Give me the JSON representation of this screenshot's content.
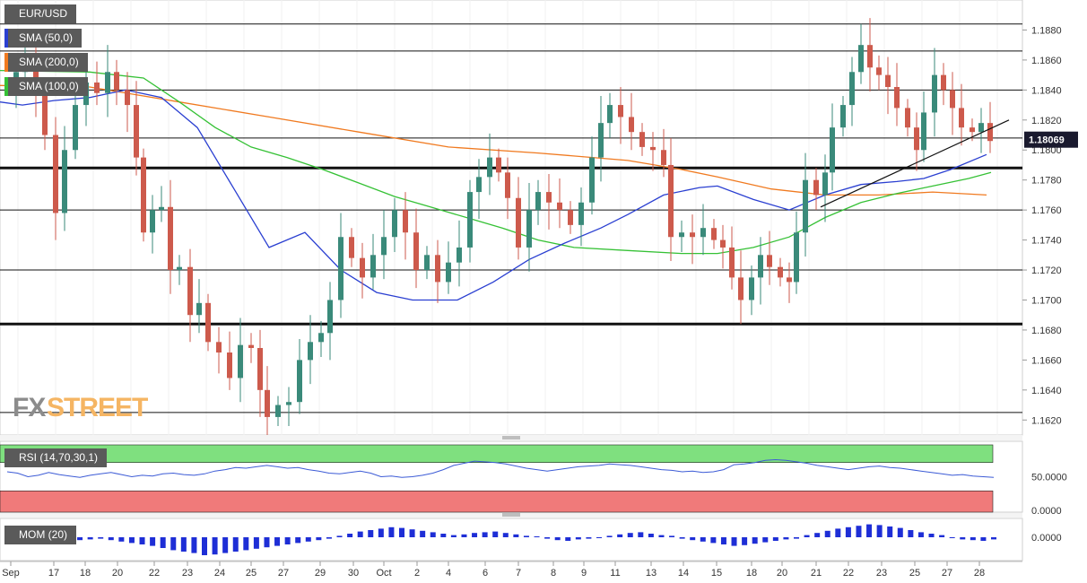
{
  "colors": {
    "up": "#3a8a7a",
    "down": "#cd5a4c",
    "sma50": "#2a3fd1",
    "sma200": "#f07a20",
    "sma100": "#35c135",
    "rsi_line": "#3c5bd6",
    "rsi_overbought": "#7fe07f",
    "rsi_oversold": "#f07a7a",
    "mom_bar": "#1e2ed6",
    "tag_bg": "#1a1a2e",
    "logo_fx": "#8c8c8c",
    "logo_street": "#f5b563"
  },
  "chart_data": [
    {
      "type": "candlestick",
      "symbol": "EUR/USD",
      "ylim": [
        1.161,
        1.19
      ],
      "y_ticks": [
        "1.1620",
        "1.1640",
        "1.1660",
        "1.1680",
        "1.1700",
        "1.1720",
        "1.1740",
        "1.1760",
        "1.1780",
        "1.1800",
        "1.1820",
        "1.1840",
        "1.1860",
        "1.1880"
      ],
      "last_price": "1.18069",
      "x_ticks": [
        "Sep",
        "17",
        "18",
        "20",
        "22",
        "23",
        "24",
        "25",
        "27",
        "29",
        "30",
        "Oct",
        "2",
        "4",
        "6",
        "7",
        "8",
        "9",
        "11",
        "13",
        "14",
        "15",
        "18",
        "20",
        "21",
        "22",
        "23",
        "25",
        "27",
        "28"
      ],
      "indicators": [
        {
          "name": "SMA (50,0)",
          "color": "#2a3fd1"
        },
        {
          "name": "SMA (200,0)",
          "color": "#f07a20"
        },
        {
          "name": "SMA (100,0)",
          "color": "#35c135"
        }
      ],
      "sma50_path": [
        [
          0,
          1.1832
        ],
        [
          25,
          1.183
        ],
        [
          60,
          1.1833
        ],
        [
          100,
          1.1835
        ],
        [
          140,
          1.184
        ],
        [
          180,
          1.1835
        ],
        [
          220,
          1.1815
        ],
        [
          260,
          1.1775
        ],
        [
          300,
          1.1735
        ],
        [
          340,
          1.1745
        ],
        [
          380,
          1.172
        ],
        [
          420,
          1.1705
        ],
        [
          460,
          1.17
        ],
        [
          510,
          1.17
        ],
        [
          550,
          1.1712
        ],
        [
          590,
          1.1727
        ],
        [
          630,
          1.1738
        ],
        [
          670,
          1.1748
        ],
        [
          700,
          1.1757
        ],
        [
          740,
          1.177
        ],
        [
          780,
          1.1775
        ],
        [
          800,
          1.1776
        ],
        [
          840,
          1.1767
        ],
        [
          880,
          1.176
        ],
        [
          920,
          1.177
        ],
        [
          960,
          1.1777
        ],
        [
          1000,
          1.1779
        ],
        [
          1030,
          1.1781
        ],
        [
          1060,
          1.1787
        ],
        [
          1100,
          1.1797
        ]
      ],
      "sma200_path": [
        [
          0,
          1.1843
        ],
        [
          100,
          1.1842
        ],
        [
          200,
          1.1832
        ],
        [
          300,
          1.1822
        ],
        [
          400,
          1.1812
        ],
        [
          500,
          1.1802
        ],
        [
          600,
          1.1798
        ],
        [
          700,
          1.1793
        ],
        [
          760,
          1.1787
        ],
        [
          800,
          1.1782
        ],
        [
          860,
          1.1774
        ],
        [
          920,
          1.177
        ],
        [
          980,
          1.177
        ],
        [
          1040,
          1.1772
        ],
        [
          1100,
          1.177
        ]
      ],
      "sma100_path": [
        [
          0,
          1.1853
        ],
        [
          100,
          1.1852
        ],
        [
          160,
          1.1848
        ],
        [
          200,
          1.1832
        ],
        [
          240,
          1.1815
        ],
        [
          280,
          1.1802
        ],
        [
          320,
          1.1795
        ],
        [
          360,
          1.1787
        ],
        [
          400,
          1.1778
        ],
        [
          440,
          1.1769
        ],
        [
          480,
          1.1762
        ],
        [
          520,
          1.1755
        ],
        [
          560,
          1.1748
        ],
        [
          600,
          1.174
        ],
        [
          640,
          1.1735
        ],
        [
          700,
          1.1733
        ],
        [
          760,
          1.1731
        ],
        [
          800,
          1.1731
        ],
        [
          840,
          1.1735
        ],
        [
          880,
          1.1742
        ],
        [
          920,
          1.1755
        ],
        [
          960,
          1.1765
        ],
        [
          1000,
          1.1771
        ],
        [
          1040,
          1.1776
        ],
        [
          1080,
          1.1781
        ],
        [
          1105,
          1.1785
        ]
      ],
      "horizontal_levels": [
        {
          "price": 1.1884,
          "bold": false
        },
        {
          "price": 1.1866,
          "bold": false
        },
        {
          "price": 1.184,
          "bold": false
        },
        {
          "price": 1.1808,
          "bold": false
        },
        {
          "price": 1.1788,
          "bold": true
        },
        {
          "price": 1.176,
          "bold": false
        },
        {
          "price": 1.172,
          "bold": false
        },
        {
          "price": 1.1684,
          "bold": true
        },
        {
          "price": 1.1625,
          "bold": false
        }
      ],
      "trendline": [
        [
          915,
          1.1762
        ],
        [
          1125,
          1.182
        ]
      ],
      "candles_close_path": [
        [
          8,
          1.1842
        ],
        [
          18,
          1.1852
        ],
        [
          28,
          1.1856
        ],
        [
          40,
          1.1838
        ],
        [
          50,
          1.181
        ],
        [
          62,
          1.1758
        ],
        [
          72,
          1.18
        ],
        [
          84,
          1.183
        ],
        [
          96,
          1.1845
        ],
        [
          108,
          1.1838
        ],
        [
          120,
          1.1852
        ],
        [
          130,
          1.184
        ],
        [
          142,
          1.183
        ],
        [
          152,
          1.1795
        ],
        [
          160,
          1.1745
        ],
        [
          170,
          1.176
        ],
        [
          180,
          1.1762
        ],
        [
          190,
          1.172
        ],
        [
          200,
          1.1722
        ],
        [
          212,
          1.169
        ],
        [
          222,
          1.1698
        ],
        [
          232,
          1.1672
        ],
        [
          244,
          1.1665
        ],
        [
          256,
          1.1648
        ],
        [
          268,
          1.167
        ],
        [
          280,
          1.1668
        ],
        [
          290,
          1.164
        ],
        [
          298,
          1.1622
        ],
        [
          310,
          1.163
        ],
        [
          322,
          1.1632
        ],
        [
          334,
          1.166
        ],
        [
          346,
          1.1672
        ],
        [
          358,
          1.1678
        ],
        [
          368,
          1.17
        ],
        [
          380,
          1.1742
        ],
        [
          392,
          1.1728
        ],
        [
          404,
          1.1715
        ],
        [
          416,
          1.173
        ],
        [
          428,
          1.1742
        ],
        [
          440,
          1.176
        ],
        [
          452,
          1.1745
        ],
        [
          464,
          1.172
        ],
        [
          476,
          1.173
        ],
        [
          488,
          1.1712
        ],
        [
          500,
          1.1725
        ],
        [
          512,
          1.1735
        ],
        [
          524,
          1.1772
        ],
        [
          534,
          1.1782
        ],
        [
          546,
          1.1795
        ],
        [
          556,
          1.1785
        ],
        [
          566,
          1.1768
        ],
        [
          578,
          1.1735
        ],
        [
          590,
          1.176
        ],
        [
          600,
          1.1772
        ],
        [
          612,
          1.1765
        ],
        [
          624,
          1.176
        ],
        [
          636,
          1.175
        ],
        [
          648,
          1.1765
        ],
        [
          660,
          1.1795
        ],
        [
          670,
          1.1818
        ],
        [
          680,
          1.183
        ],
        [
          692,
          1.1822
        ],
        [
          704,
          1.1812
        ],
        [
          716,
          1.1802
        ],
        [
          728,
          1.18
        ],
        [
          740,
          1.179
        ],
        [
          748,
          1.1742
        ],
        [
          760,
          1.1745
        ],
        [
          772,
          1.1742
        ],
        [
          784,
          1.1748
        ],
        [
          796,
          1.174
        ],
        [
          806,
          1.1735
        ],
        [
          816,
          1.1715
        ],
        [
          826,
          1.17
        ],
        [
          838,
          1.1715
        ],
        [
          848,
          1.173
        ],
        [
          858,
          1.1722
        ],
        [
          870,
          1.1715
        ],
        [
          880,
          1.1712
        ],
        [
          888,
          1.1745
        ],
        [
          898,
          1.178
        ],
        [
          910,
          1.177
        ],
        [
          920,
          1.1785
        ],
        [
          928,
          1.1815
        ],
        [
          940,
          1.183
        ],
        [
          950,
          1.1852
        ],
        [
          960,
          1.187
        ],
        [
          970,
          1.1855
        ],
        [
          980,
          1.185
        ],
        [
          990,
          1.1842
        ],
        [
          1000,
          1.1828
        ],
        [
          1012,
          1.1815
        ],
        [
          1022,
          1.18
        ],
        [
          1030,
          1.1825
        ],
        [
          1042,
          1.185
        ],
        [
          1052,
          1.184
        ],
        [
          1062,
          1.1828
        ],
        [
          1072,
          1.1815
        ],
        [
          1084,
          1.1812
        ],
        [
          1094,
          1.1818
        ],
        [
          1104,
          1.1806
        ]
      ],
      "series": [
        {
          "name": "SMA (50,0)",
          "color": "#2a3fd1"
        },
        {
          "name": "SMA (200,0)",
          "color": "#f07a20"
        },
        {
          "name": "SMA (100,0)",
          "color": "#35c135"
        }
      ]
    },
    {
      "type": "line",
      "indicator": "RSI (14,70,30,1)",
      "ylim": [
        0,
        100
      ],
      "y_ticks": [
        "50.0000",
        "0.0000"
      ],
      "overbought": 70,
      "oversold": 30,
      "values": [
        57,
        55,
        50,
        52,
        56,
        53,
        51,
        49,
        52,
        54,
        56,
        53,
        50,
        52,
        51,
        54,
        55,
        53,
        52,
        54,
        58,
        60,
        63,
        62,
        64,
        66,
        64,
        62,
        63,
        60,
        58,
        55,
        54,
        56,
        58,
        55,
        50,
        51,
        49,
        50,
        52,
        55,
        60,
        66,
        69,
        72,
        71,
        70,
        68,
        65,
        62,
        60,
        58,
        60,
        62,
        64,
        65,
        66,
        68,
        67,
        66,
        64,
        62,
        60,
        59,
        57,
        58,
        56,
        57,
        60,
        67,
        68,
        70,
        73,
        74,
        73,
        71,
        69,
        66,
        64,
        62,
        60,
        62,
        64,
        65,
        63,
        62,
        60,
        58,
        56,
        54,
        52,
        53,
        51,
        50,
        49
      ]
    },
    {
      "type": "bar",
      "indicator": "MOM (20)",
      "y_ticks": [
        "0.0000"
      ],
      "values": [
        0.0005,
        0.0006,
        0.0004,
        -0.0003,
        -0.0005,
        -0.0008,
        -0.0007,
        -0.0004,
        -0.0003,
        -0.0002,
        -0.0004,
        -0.0006,
        -0.0008,
        -0.001,
        -0.0012,
        -0.0015,
        -0.0018,
        -0.002,
        -0.0022,
        -0.0025,
        -0.0024,
        -0.0022,
        -0.002,
        -0.0018,
        -0.0016,
        -0.0014,
        -0.0012,
        -0.001,
        -0.0008,
        -0.0006,
        -0.0004,
        -0.0002,
        0.0002,
        0.0005,
        0.0008,
        0.001,
        0.0012,
        0.0014,
        0.0013,
        0.0011,
        0.0009,
        0.0007,
        0.0005,
        0.0003,
        0.0004,
        0.0006,
        0.0007,
        0.0008,
        0.0006,
        0.0004,
        0.0002,
        0.0001,
        -0.0002,
        -0.0004,
        -0.0005,
        -0.0003,
        -0.0002,
        -0.0001,
        0.0002,
        0.0004,
        0.0006,
        0.0007,
        0.0005,
        0.0003,
        0.0002,
        -0.0002,
        -0.0004,
        -0.0006,
        -0.0008,
        -0.001,
        -0.0012,
        -0.0011,
        -0.0009,
        -0.0007,
        -0.0005,
        -0.0003,
        -0.0002,
        0.0003,
        0.0006,
        0.0009,
        0.0012,
        0.0014,
        0.0016,
        0.0018,
        0.0017,
        0.0015,
        0.0013,
        0.001,
        0.0007,
        0.0005,
        0.0003,
        -0.0001,
        -0.0003,
        -0.0004,
        -0.0005,
        -0.0003
      ]
    }
  ],
  "logo": {
    "fx": "FX",
    "street": "STREET"
  }
}
